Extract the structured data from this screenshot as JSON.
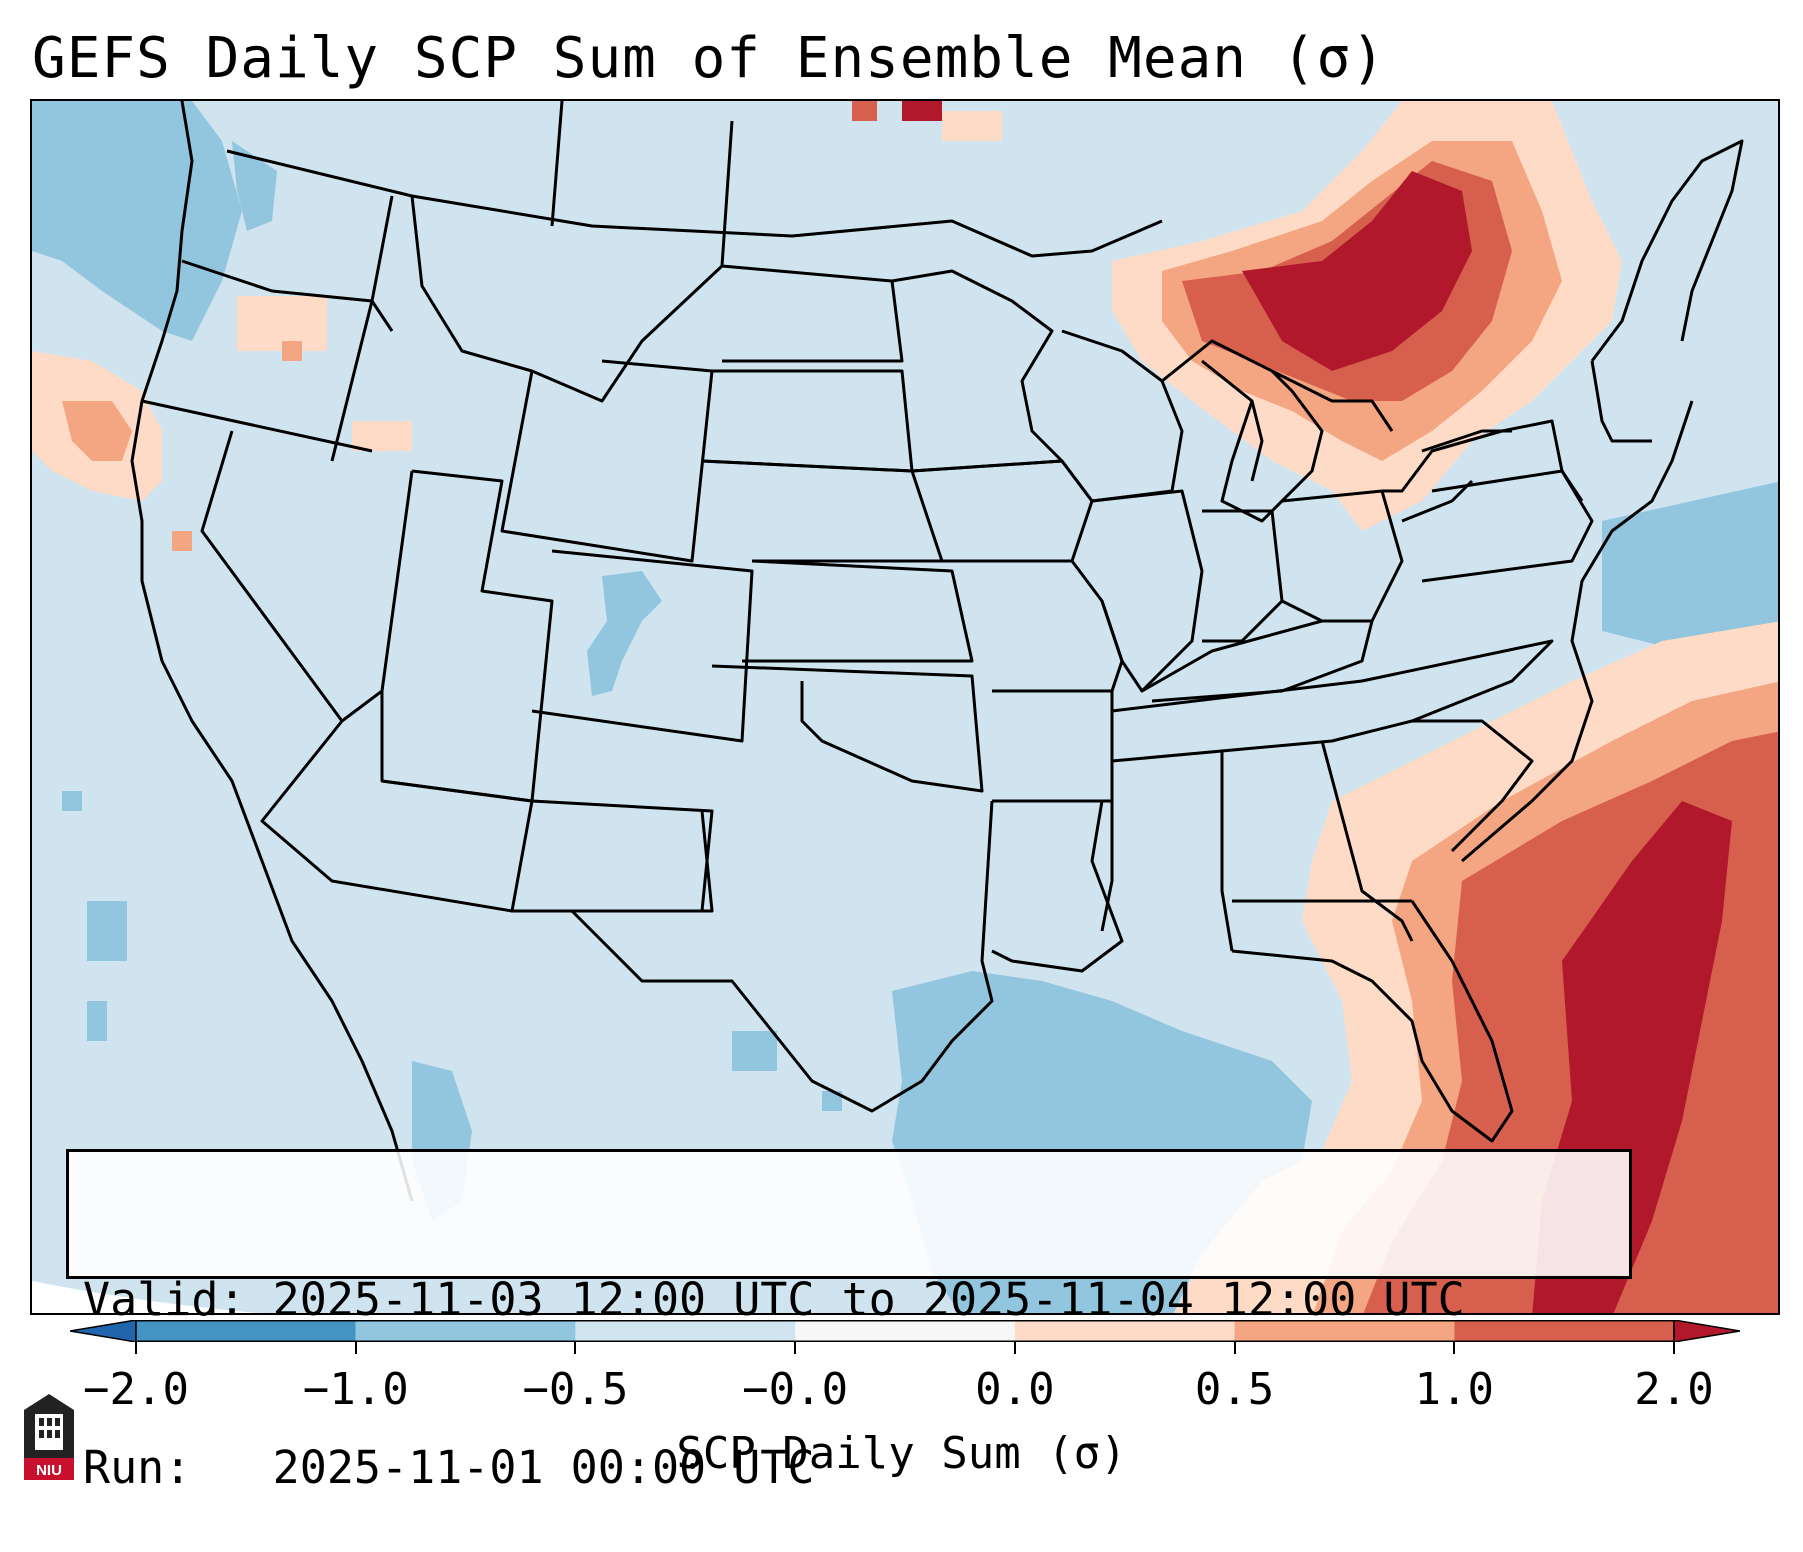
{
  "title": "GEFS Daily SCP Sum of Ensemble Mean (σ)",
  "valid_line": "Valid: 2025-11-03 12:00 UTC to 2025-11-04 12:00 UTC",
  "run_line": "Run:   2025-11-01 00:00 UTC",
  "colorbar": {
    "label": "SCP Daily Sum (σ)",
    "ticks": [
      "−2.0",
      "−1.0",
      "−0.5",
      "−0.0",
      "0.0",
      "0.5",
      "1.0",
      "2.0"
    ],
    "bin_colors": [
      "#4393c3",
      "#92c5de",
      "#d1e5f0",
      "#f7f7f7",
      "#fddbc7",
      "#f4a582",
      "#d6604d",
      "#b2182b"
    ],
    "extend_low_color": "#2166ac",
    "extend_high_color": "#b2182b"
  },
  "logo_text": "NIU",
  "map": {
    "background_color": "#d0e4f0",
    "region": "Continental United States",
    "outline_color": "#000000"
  }
}
